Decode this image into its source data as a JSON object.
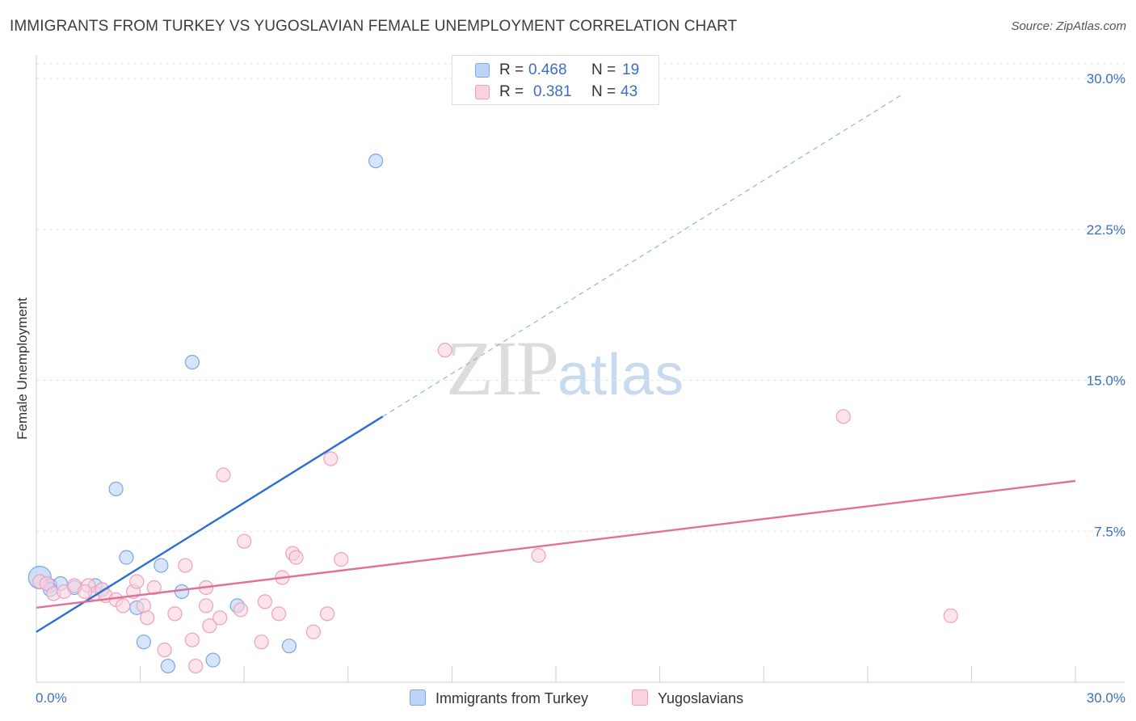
{
  "chart_data": {
    "type": "scatter",
    "title": "IMMIGRANTS FROM TURKEY VS YUGOSLAVIAN FEMALE UNEMPLOYMENT CORRELATION CHART",
    "source": "Source: ZipAtlas.com",
    "ylabel": "Female Unemployment",
    "xlim": [
      0,
      30
    ],
    "ylim": [
      0,
      30
    ],
    "y_ticks": [
      {
        "value": 7.5,
        "label": "7.5%"
      },
      {
        "value": 15,
        "label": "15.0%"
      },
      {
        "value": 22.5,
        "label": "22.5%"
      },
      {
        "value": 30,
        "label": "30.0%"
      }
    ],
    "x_tick_labels": {
      "min": "0.0%",
      "max": "30.0%"
    },
    "grid": true,
    "watermark": {
      "zip": "ZIP",
      "atlas": "atlas"
    },
    "series": [
      {
        "name": "Immigrants from Turkey",
        "color": "#7aa7e6",
        "fill": "#bcd4f6",
        "line_color": "#2a6fd1",
        "r_label": "R = ",
        "r_value": "0.468",
        "n_label": "N = ",
        "n_value": "19",
        "trend": {
          "x0": 0,
          "y0": 2.5,
          "x1": 10.0,
          "y1": 13.2,
          "dash_to_x": 25.0,
          "dash_to_y": 29.2
        },
        "points": [
          [
            0.1,
            5.2
          ],
          [
            0.4,
            4.8
          ],
          [
            0.7,
            4.9
          ],
          [
            1.1,
            4.7
          ],
          [
            1.7,
            4.8
          ],
          [
            1.9,
            4.6
          ],
          [
            2.3,
            9.6
          ],
          [
            2.6,
            6.2
          ],
          [
            2.9,
            3.7
          ],
          [
            3.1,
            2.0
          ],
          [
            3.6,
            5.8
          ],
          [
            3.8,
            0.8
          ],
          [
            4.2,
            4.5
          ],
          [
            4.5,
            15.9
          ],
          [
            5.1,
            1.1
          ],
          [
            5.8,
            3.8
          ],
          [
            7.3,
            1.8
          ],
          [
            9.8,
            25.9
          ],
          [
            0.4,
            4.6
          ]
        ]
      },
      {
        "name": "Yugoslavians",
        "color": "#f0a0bb",
        "fill": "#f9d2de",
        "line_color": "#e0729a",
        "r_label": "R = ",
        "r_value": "0.381",
        "n_label": "N = ",
        "n_value": "43",
        "trend": {
          "x0": 0,
          "y0": 3.7,
          "x1": 30.0,
          "y1": 10.0
        },
        "points": [
          [
            0.1,
            5.0
          ],
          [
            0.3,
            4.9
          ],
          [
            0.5,
            4.4
          ],
          [
            0.8,
            4.5
          ],
          [
            1.1,
            4.8
          ],
          [
            1.5,
            4.8
          ],
          [
            1.7,
            4.4
          ],
          [
            1.9,
            4.6
          ],
          [
            2.0,
            4.3
          ],
          [
            2.3,
            4.1
          ],
          [
            2.5,
            3.8
          ],
          [
            2.8,
            4.5
          ],
          [
            2.9,
            5.0
          ],
          [
            3.1,
            3.8
          ],
          [
            3.2,
            3.2
          ],
          [
            3.4,
            4.7
          ],
          [
            3.7,
            1.6
          ],
          [
            4.0,
            3.4
          ],
          [
            4.3,
            5.8
          ],
          [
            4.5,
            2.1
          ],
          [
            4.6,
            0.8
          ],
          [
            4.9,
            3.8
          ],
          [
            5.0,
            2.8
          ],
          [
            5.3,
            3.2
          ],
          [
            5.4,
            10.3
          ],
          [
            5.9,
            3.6
          ],
          [
            6.0,
            7.0
          ],
          [
            6.5,
            2.0
          ],
          [
            6.6,
            4.0
          ],
          [
            7.0,
            3.4
          ],
          [
            7.1,
            5.2
          ],
          [
            7.4,
            6.4
          ],
          [
            7.5,
            6.2
          ],
          [
            8.0,
            2.5
          ],
          [
            8.4,
            3.4
          ],
          [
            8.5,
            11.1
          ],
          [
            8.8,
            6.1
          ],
          [
            11.8,
            16.5
          ],
          [
            14.5,
            6.3
          ],
          [
            23.3,
            13.2
          ],
          [
            26.4,
            3.3
          ],
          [
            1.4,
            4.5
          ],
          [
            4.9,
            4.7
          ]
        ]
      }
    ]
  }
}
